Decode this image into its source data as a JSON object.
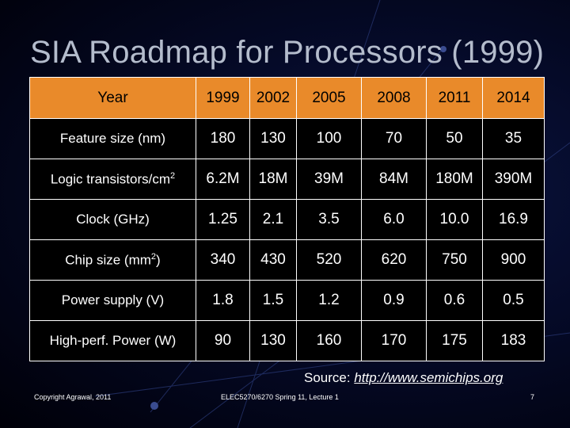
{
  "slide": {
    "title": "SIA Roadmap for Processors (1999)",
    "source_prefix": "Source: ",
    "source_link": "http://www.semichips.org",
    "footer_left": "Copyright Agrawal, 2011",
    "footer_center": "ELEC5270/6270 Spring 11, Lecture 1",
    "page_number": "7"
  },
  "colors": {
    "header_fill": "#e98a2a",
    "background": "#050a28",
    "title_text": "#b4bccc"
  },
  "table": {
    "header": [
      "Year",
      "1999",
      "2002",
      "2005",
      "2008",
      "2011",
      "2014"
    ],
    "rows": [
      {
        "label": "Feature size (nm)",
        "label_sup": "",
        "label_after": "",
        "values": [
          "180",
          "130",
          "100",
          "70",
          "50",
          "35"
        ]
      },
      {
        "label": "Logic transistors/cm",
        "label_sup": "2",
        "label_after": "",
        "values": [
          "6.2M",
          "18M",
          "39M",
          "84M",
          "180M",
          "390M"
        ]
      },
      {
        "label": "Clock (GHz)",
        "label_sup": "",
        "label_after": "",
        "values": [
          "1.25",
          "2.1",
          "3.5",
          "6.0",
          "10.0",
          "16.9"
        ]
      },
      {
        "label": "Chip size (mm",
        "label_sup": "2",
        "label_after": ")",
        "values": [
          "340",
          "430",
          "520",
          "620",
          "750",
          "900"
        ]
      },
      {
        "label": "Power supply (V)",
        "label_sup": "",
        "label_after": "",
        "values": [
          "1.8",
          "1.5",
          "1.2",
          "0.9",
          "0.6",
          "0.5"
        ]
      },
      {
        "label": "High-perf. Power (W)",
        "label_sup": "",
        "label_after": "",
        "values": [
          "90",
          "130",
          "160",
          "170",
          "175",
          "183"
        ]
      }
    ]
  }
}
